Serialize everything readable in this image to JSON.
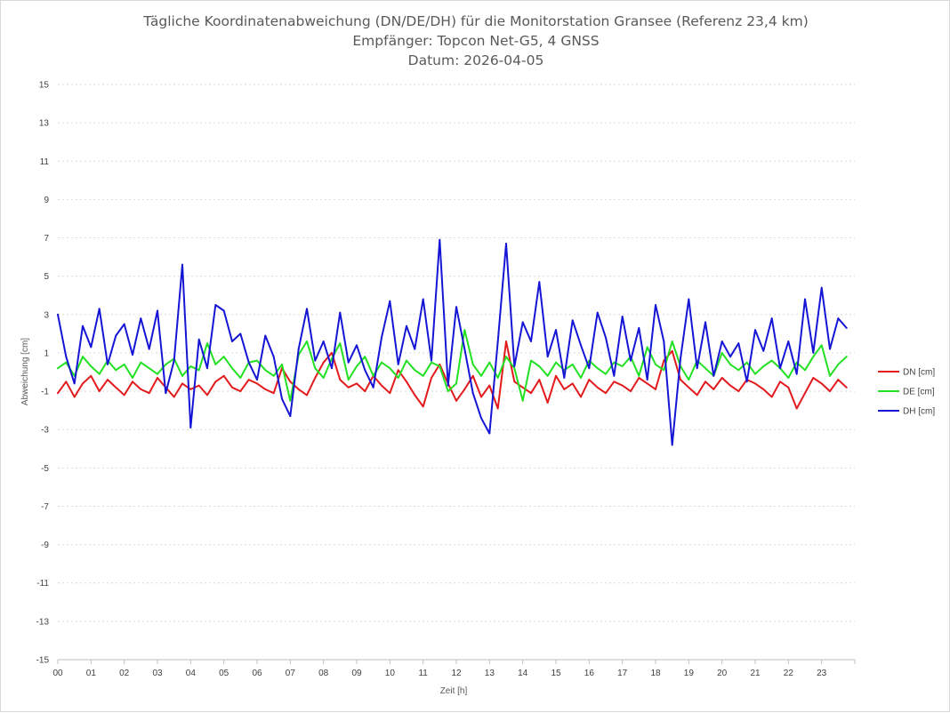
{
  "chart_data": {
    "type": "line",
    "title_lines": [
      "Tägliche Koordinatenabweichung (DN/DE/DH) für die Monitorstation Gransee (Referenz 23,4 km)",
      "Empfänger: Topcon Net-G5, 4 GNSS",
      "Datum: 2026-04-05"
    ],
    "xlabel": "Zeit [h]",
    "ylabel": "Abweichung [cm]",
    "x_ticks": [
      "00",
      "01",
      "02",
      "03",
      "04",
      "05",
      "06",
      "07",
      "08",
      "09",
      "10",
      "11",
      "12",
      "13",
      "14",
      "15",
      "16",
      "17",
      "18",
      "19",
      "20",
      "21",
      "22",
      "23"
    ],
    "y_ticks": [
      15,
      13,
      11,
      9,
      7,
      5,
      3,
      1,
      -1,
      -3,
      -5,
      -7,
      -9,
      -11,
      -13,
      -15
    ],
    "xlim": [
      0,
      24
    ],
    "ylim": [
      -15,
      15
    ],
    "grid": "horizontal dotted",
    "legend_position": "right",
    "colors": {
      "DN": "#e31a1c",
      "DE": "#22e022",
      "DH": "#1515d6"
    },
    "series": [
      {
        "name": "DN [cm]",
        "color": "#e31a1c",
        "x": [
          0.0,
          0.25,
          0.5,
          0.75,
          1.0,
          1.25,
          1.5,
          1.75,
          2.0,
          2.25,
          2.5,
          2.75,
          3.0,
          3.25,
          3.5,
          3.75,
          4.0,
          4.25,
          4.5,
          4.75,
          5.0,
          5.25,
          5.5,
          5.75,
          6.0,
          6.25,
          6.5,
          6.75,
          7.0,
          7.25,
          7.5,
          7.75,
          8.0,
          8.25,
          8.5,
          8.75,
          9.0,
          9.25,
          9.5,
          9.75,
          10.0,
          10.25,
          10.5,
          10.75,
          11.0,
          11.25,
          11.5,
          11.75,
          12.0,
          12.25,
          12.5,
          12.75,
          13.0,
          13.25,
          13.5,
          13.75,
          14.0,
          14.25,
          14.5,
          14.75,
          15.0,
          15.25,
          15.5,
          15.75,
          16.0,
          16.25,
          16.5,
          16.75,
          17.0,
          17.25,
          17.5,
          17.75,
          18.0,
          18.25,
          18.5,
          18.75,
          19.0,
          19.25,
          19.5,
          19.75,
          20.0,
          20.25,
          20.5,
          20.75,
          21.0,
          21.25,
          21.5,
          21.75,
          22.0,
          22.25,
          22.5,
          22.75,
          23.0,
          23.25,
          23.5,
          23.75
        ],
        "values": [
          -1.1,
          -0.5,
          -1.3,
          -0.6,
          -0.2,
          -1.0,
          -0.4,
          -0.8,
          -1.2,
          -0.5,
          -0.9,
          -1.1,
          -0.3,
          -0.8,
          -1.3,
          -0.6,
          -0.9,
          -0.7,
          -1.2,
          -0.5,
          -0.2,
          -0.8,
          -1.0,
          -0.4,
          -0.6,
          -0.9,
          -1.1,
          0.2,
          -0.5,
          -0.9,
          -1.2,
          -0.3,
          0.5,
          1.0,
          -0.4,
          -0.8,
          -0.6,
          -1.0,
          -0.2,
          -0.7,
          -1.1,
          0.1,
          -0.5,
          -1.2,
          -1.8,
          -0.3,
          0.4,
          -0.6,
          -1.5,
          -0.9,
          -0.2,
          -1.3,
          -0.7,
          -1.9,
          1.6,
          -0.5,
          -0.8,
          -1.1,
          -0.4,
          -1.6,
          -0.2,
          -0.9,
          -0.6,
          -1.3,
          -0.4,
          -0.8,
          -1.1,
          -0.5,
          -0.7,
          -1.0,
          -0.3,
          -0.6,
          -0.9,
          0.6,
          1.1,
          -0.4,
          -0.8,
          -1.2,
          -0.5,
          -0.9,
          -0.3,
          -0.7,
          -1.0,
          -0.4,
          -0.6,
          -0.9,
          -1.3,
          -0.5,
          -0.8,
          -1.9,
          -1.1,
          -0.3,
          -0.6,
          -1.0,
          -0.4,
          -0.8
        ]
      },
      {
        "name": "DE [cm]",
        "color": "#22e022",
        "x": [
          0.0,
          0.25,
          0.5,
          0.75,
          1.0,
          1.25,
          1.5,
          1.75,
          2.0,
          2.25,
          2.5,
          2.75,
          3.0,
          3.25,
          3.5,
          3.75,
          4.0,
          4.25,
          4.5,
          4.75,
          5.0,
          5.25,
          5.5,
          5.75,
          6.0,
          6.25,
          6.5,
          6.75,
          7.0,
          7.25,
          7.5,
          7.75,
          8.0,
          8.25,
          8.5,
          8.75,
          9.0,
          9.25,
          9.5,
          9.75,
          10.0,
          10.25,
          10.5,
          10.75,
          11.0,
          11.25,
          11.5,
          11.75,
          12.0,
          12.25,
          12.5,
          12.75,
          13.0,
          13.25,
          13.5,
          13.75,
          14.0,
          14.25,
          14.5,
          14.75,
          15.0,
          15.25,
          15.5,
          15.75,
          16.0,
          16.25,
          16.5,
          16.75,
          17.0,
          17.25,
          17.5,
          17.75,
          18.0,
          18.25,
          18.5,
          18.75,
          19.0,
          19.25,
          19.5,
          19.75,
          20.0,
          20.25,
          20.5,
          20.75,
          21.0,
          21.25,
          21.5,
          21.75,
          22.0,
          22.25,
          22.5,
          22.75,
          23.0,
          23.25,
          23.5,
          23.75
        ],
        "values": [
          0.2,
          0.5,
          -0.2,
          0.8,
          0.3,
          -0.1,
          0.6,
          0.1,
          0.4,
          -0.3,
          0.5,
          0.2,
          -0.1,
          0.4,
          0.7,
          -0.2,
          0.3,
          0.1,
          1.5,
          0.4,
          0.8,
          0.2,
          -0.3,
          0.5,
          0.6,
          0.1,
          -0.2,
          0.4,
          -1.5,
          0.9,
          1.6,
          0.2,
          -0.3,
          0.7,
          1.5,
          -0.4,
          0.3,
          0.8,
          -0.2,
          0.5,
          0.2,
          -0.3,
          0.6,
          0.1,
          -0.2,
          0.5,
          0.3,
          -1.0,
          -0.6,
          2.2,
          0.4,
          -0.2,
          0.5,
          -0.3,
          0.8,
          0.2,
          -1.5,
          0.6,
          0.3,
          -0.2,
          0.5,
          0.1,
          0.4,
          -0.3,
          0.6,
          0.2,
          -0.1,
          0.5,
          0.3,
          0.8,
          -0.2,
          1.3,
          0.4,
          0.1,
          1.6,
          0.3,
          -0.4,
          0.6,
          0.2,
          -0.2,
          1.0,
          0.4,
          0.1,
          0.5,
          -0.1,
          0.3,
          0.6,
          0.2,
          -0.3,
          0.5,
          0.1,
          0.8,
          1.4,
          -0.2,
          0.4,
          0.8
        ]
      },
      {
        "name": "DH [cm]",
        "color": "#1515d6",
        "x": [
          0.0,
          0.25,
          0.5,
          0.75,
          1.0,
          1.25,
          1.5,
          1.75,
          2.0,
          2.25,
          2.5,
          2.75,
          3.0,
          3.25,
          3.5,
          3.75,
          4.0,
          4.25,
          4.5,
          4.75,
          5.0,
          5.25,
          5.5,
          5.75,
          6.0,
          6.25,
          6.5,
          6.75,
          7.0,
          7.25,
          7.5,
          7.75,
          8.0,
          8.25,
          8.5,
          8.75,
          9.0,
          9.25,
          9.5,
          9.75,
          10.0,
          10.25,
          10.5,
          10.75,
          11.0,
          11.25,
          11.5,
          11.75,
          12.0,
          12.25,
          12.5,
          12.75,
          13.0,
          13.25,
          13.5,
          13.75,
          14.0,
          14.25,
          14.5,
          14.75,
          15.0,
          15.25,
          15.5,
          15.75,
          16.0,
          16.25,
          16.5,
          16.75,
          17.0,
          17.25,
          17.5,
          17.75,
          18.0,
          18.25,
          18.5,
          18.75,
          19.0,
          19.25,
          19.5,
          19.75,
          20.0,
          20.25,
          20.5,
          20.75,
          21.0,
          21.25,
          21.5,
          21.75,
          22.0,
          22.25,
          22.5,
          22.75,
          23.0,
          23.25,
          23.5,
          23.75
        ],
        "values": [
          3.0,
          0.8,
          -0.6,
          2.4,
          1.3,
          3.3,
          0.4,
          1.9,
          2.5,
          0.9,
          2.8,
          1.2,
          3.2,
          -1.1,
          0.6,
          5.6,
          -2.9,
          1.7,
          0.2,
          3.5,
          3.2,
          1.6,
          2.0,
          0.5,
          -0.4,
          1.9,
          0.8,
          -1.4,
          -2.3,
          1.2,
          3.3,
          0.6,
          1.6,
          0.2,
          3.1,
          0.5,
          1.4,
          0.1,
          -0.8,
          1.8,
          3.7,
          0.4,
          2.4,
          1.2,
          3.8,
          0.6,
          6.9,
          -0.7,
          3.4,
          1.2,
          -1.1,
          -2.4,
          -3.2,
          1.6,
          6.7,
          0.3,
          2.6,
          1.6,
          4.7,
          0.8,
          2.2,
          -0.3,
          2.7,
          1.4,
          0.2,
          3.1,
          1.8,
          -0.2,
          2.9,
          0.6,
          2.3,
          -0.4,
          3.5,
          1.6,
          -3.8,
          0.7,
          3.8,
          0.2,
          2.6,
          -0.2,
          1.6,
          0.8,
          1.5,
          -0.5,
          2.2,
          1.1,
          2.8,
          0.2,
          1.6,
          -0.1,
          3.8,
          1.0,
          4.4,
          1.2,
          2.8,
          2.3
        ]
      }
    ]
  }
}
